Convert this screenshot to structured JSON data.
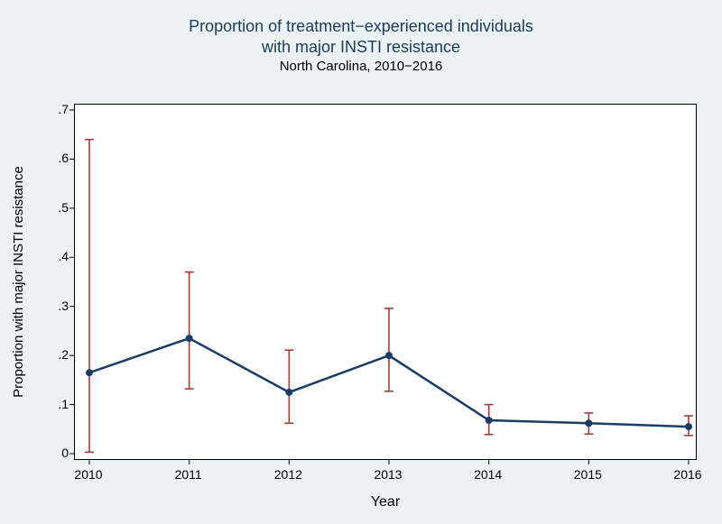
{
  "chart": {
    "type": "line-errorbar",
    "title_line1": "Proportion of treatment−experienced individuals",
    "title_line2": "with major INSTI resistance",
    "subtitle": "North Carolina, 2010−2016",
    "title_color": "#1e395b",
    "title_fontsize": 18,
    "subtitle_fontsize": 15,
    "background_color": "#eaf2f3",
    "plot_background": "#ffffff",
    "plot_border_color": "#000000",
    "xlabel": "Year",
    "ylabel": "Proportion with major INSTI resistance",
    "label_fontsize": 15,
    "tick_fontsize": 14,
    "xlim": [
      2010,
      2016
    ],
    "ylim": [
      0,
      0.7
    ],
    "xticks": [
      2010,
      2011,
      2012,
      2013,
      2014,
      2015,
      2016
    ],
    "yticks": [
      0,
      0.1,
      0.2,
      0.3,
      0.4,
      0.5,
      0.6,
      0.7
    ],
    "ytick_labels": [
      "0",
      ".1",
      ".2",
      ".3",
      ".4",
      ".5",
      ".6",
      ".7"
    ],
    "tick_length": 6,
    "line_color": "#1a3d66",
    "line_width": 2.5,
    "marker_color": "#1a3d66",
    "marker_radius": 4,
    "errorbar_color": "#a83a3a",
    "errorbar_width": 1.6,
    "errorbar_cap": 5,
    "series": {
      "x": [
        2010,
        2011,
        2012,
        2013,
        2014,
        2015,
        2016
      ],
      "y": [
        0.165,
        0.235,
        0.125,
        0.2,
        0.068,
        0.062,
        0.055
      ],
      "low": [
        0.003,
        0.132,
        0.062,
        0.127,
        0.039,
        0.04,
        0.037
      ],
      "high": [
        0.64,
        0.37,
        0.211,
        0.296,
        0.1,
        0.083,
        0.077
      ]
    }
  }
}
